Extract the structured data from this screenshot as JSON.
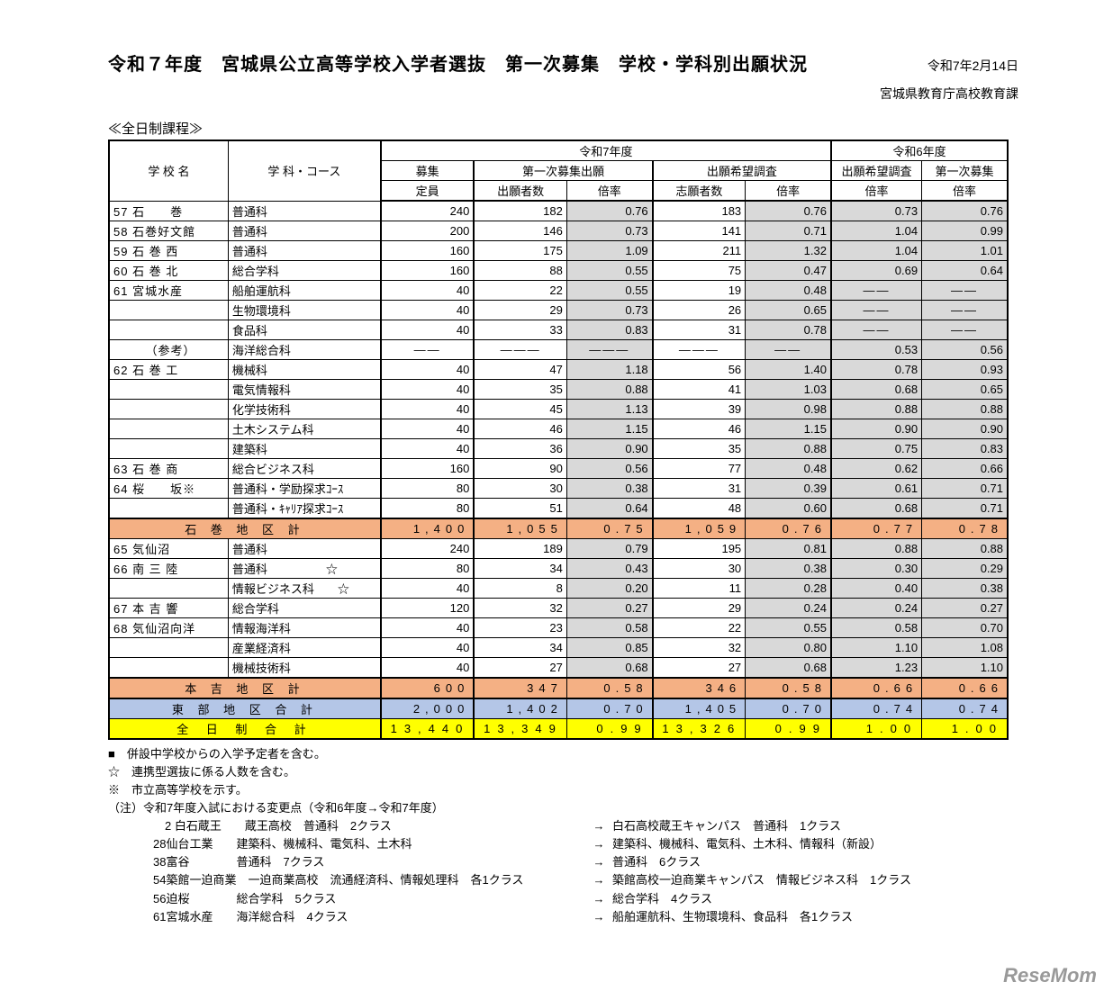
{
  "header": {
    "title": "令和７年度　宮城県公立高等学校入学者選抜　第一次募集　学校・学科別出願状況",
    "date": "令和7年2月14日",
    "department": "宮城県教育庁高校教育課",
    "program_label": "≪全日制課程≫"
  },
  "columns": {
    "school": "学 校 名",
    "dept": "学 科・コース",
    "r7_group": "令和7年度",
    "r6_group": "令和6年度",
    "capacity_top": "募集",
    "capacity_bot": "定員",
    "first_app_group": "第一次募集出願",
    "survey_group": "出願希望調査",
    "prev_survey_top": "出願希望調査",
    "prev_first_top": "第一次募集",
    "applicants": "出願者数",
    "rate": "倍率",
    "survey_n": "志願者数"
  },
  "rows": [
    {
      "no": "57",
      "school": "石　　巻",
      "dept": "普通科",
      "cap": "240",
      "app": "182",
      "r1": "0.76",
      "surv": "183",
      "r2": "0.76",
      "p1": "0.73",
      "p2": "0.76"
    },
    {
      "no": "58",
      "school": "石巻好文館",
      "dept": "普通科",
      "cap": "200",
      "app": "146",
      "r1": "0.73",
      "surv": "141",
      "r2": "0.71",
      "p1": "1.04",
      "p2": "0.99"
    },
    {
      "no": "59",
      "school": "石 巻 西",
      "dept": "普通科",
      "cap": "160",
      "app": "175",
      "r1": "1.09",
      "surv": "211",
      "r2": "1.32",
      "p1": "1.04",
      "p2": "1.01"
    },
    {
      "no": "60",
      "school": "石 巻 北",
      "dept": "総合学科",
      "cap": "160",
      "app": "88",
      "r1": "0.55",
      "surv": "75",
      "r2": "0.47",
      "p1": "0.69",
      "p2": "0.64"
    },
    {
      "no": "61",
      "school": "宮城水産",
      "dept": "船舶運航科",
      "cap": "40",
      "app": "22",
      "r1": "0.55",
      "surv": "19",
      "r2": "0.48",
      "p1": "——",
      "p2": "——",
      "p_dash": true
    },
    {
      "no": "",
      "school": "",
      "dept": "生物環境科",
      "cap": "40",
      "app": "29",
      "r1": "0.73",
      "surv": "26",
      "r2": "0.65",
      "p1": "——",
      "p2": "——",
      "p_dash": true
    },
    {
      "no": "",
      "school": "",
      "dept": "食品科",
      "cap": "40",
      "app": "33",
      "r1": "0.83",
      "surv": "31",
      "r2": "0.78",
      "p1": "——",
      "p2": "——",
      "p_dash": true
    },
    {
      "no": "",
      "school": "　　　（参考）",
      "dept": "海洋総合科",
      "cap": "——",
      "app": "———",
      "r1": "———",
      "surv": "———",
      "r2": "——",
      "p1": "0.53",
      "p2": "0.56",
      "cap_dash": true
    },
    {
      "no": "62",
      "school": "石 巻 工",
      "dept": "機械科",
      "cap": "40",
      "app": "47",
      "r1": "1.18",
      "surv": "56",
      "r2": "1.40",
      "p1": "0.78",
      "p2": "0.93"
    },
    {
      "no": "",
      "school": "",
      "dept": "電気情報科",
      "cap": "40",
      "app": "35",
      "r1": "0.88",
      "surv": "41",
      "r2": "1.03",
      "p1": "0.68",
      "p2": "0.65"
    },
    {
      "no": "",
      "school": "",
      "dept": "化学技術科",
      "cap": "40",
      "app": "45",
      "r1": "1.13",
      "surv": "39",
      "r2": "0.98",
      "p1": "0.88",
      "p2": "0.88"
    },
    {
      "no": "",
      "school": "",
      "dept": "土木システム科",
      "cap": "40",
      "app": "46",
      "r1": "1.15",
      "surv": "46",
      "r2": "1.15",
      "p1": "0.90",
      "p2": "0.90"
    },
    {
      "no": "",
      "school": "",
      "dept": "建築科",
      "cap": "40",
      "app": "36",
      "r1": "0.90",
      "surv": "35",
      "r2": "0.88",
      "p1": "0.75",
      "p2": "0.83"
    },
    {
      "no": "63",
      "school": "石 巻 商",
      "dept": "総合ビジネス科",
      "cap": "160",
      "app": "90",
      "r1": "0.56",
      "surv": "77",
      "r2": "0.48",
      "p1": "0.62",
      "p2": "0.66"
    },
    {
      "no": "64",
      "school": "桜　　坂※",
      "dept": "普通科・学励探求ｺｰｽ",
      "cap": "80",
      "app": "30",
      "r1": "0.38",
      "surv": "31",
      "r2": "0.39",
      "p1": "0.61",
      "p2": "0.71"
    },
    {
      "no": "",
      "school": "",
      "dept": "普通科・ｷｬﾘｱ探求ｺｰｽ",
      "cap": "80",
      "app": "51",
      "r1": "0.64",
      "surv": "48",
      "r2": "0.60",
      "p1": "0.68",
      "p2": "0.71"
    },
    {
      "type": "subtotal",
      "label": "石 巻 地 区 計",
      "cap": "1,400",
      "app": "1,055",
      "r1": "0.75",
      "surv": "1,059",
      "r2": "0.76",
      "p1": "0.77",
      "p2": "0.78"
    },
    {
      "no": "65",
      "school": "気仙沼",
      "dept": "普通科",
      "cap": "240",
      "app": "189",
      "r1": "0.79",
      "surv": "195",
      "r2": "0.81",
      "p1": "0.88",
      "p2": "0.88"
    },
    {
      "no": "66",
      "school": "南 三 陸",
      "dept": "普通科　　　　　☆",
      "cap": "80",
      "app": "34",
      "r1": "0.43",
      "surv": "30",
      "r2": "0.38",
      "p1": "0.30",
      "p2": "0.29"
    },
    {
      "no": "",
      "school": "",
      "dept": "情報ビジネス科　　☆",
      "cap": "40",
      "app": "8",
      "r1": "0.20",
      "surv": "11",
      "r2": "0.28",
      "p1": "0.40",
      "p2": "0.38"
    },
    {
      "no": "67",
      "school": "本 吉 響",
      "dept": "総合学科",
      "cap": "120",
      "app": "32",
      "r1": "0.27",
      "surv": "29",
      "r2": "0.24",
      "p1": "0.24",
      "p2": "0.27"
    },
    {
      "no": "68",
      "school": "気仙沼向洋",
      "dept": "情報海洋科",
      "cap": "40",
      "app": "23",
      "r1": "0.58",
      "surv": "22",
      "r2": "0.55",
      "p1": "0.58",
      "p2": "0.70"
    },
    {
      "no": "",
      "school": "",
      "dept": "産業経済科",
      "cap": "40",
      "app": "34",
      "r1": "0.85",
      "surv": "32",
      "r2": "0.80",
      "p1": "1.10",
      "p2": "1.08"
    },
    {
      "no": "",
      "school": "",
      "dept": "機械技術科",
      "cap": "40",
      "app": "27",
      "r1": "0.68",
      "surv": "27",
      "r2": "0.68",
      "p1": "1.23",
      "p2": "1.10"
    },
    {
      "type": "subtotal",
      "label": "本 吉 地 区 計",
      "cap": "600",
      "app": "347",
      "r1": "0.58",
      "surv": "346",
      "r2": "0.58",
      "p1": "0.66",
      "p2": "0.66"
    },
    {
      "type": "region",
      "label": "東 部 地 区 合 計",
      "cap": "2,000",
      "app": "1,402",
      "r1": "0.70",
      "surv": "1,405",
      "r2": "0.70",
      "p1": "0.74",
      "p2": "0.74"
    },
    {
      "type": "grand",
      "label": "全 日 制 合 計",
      "cap": "13,440",
      "app": "13,349",
      "r1": "0.99",
      "surv": "13,326",
      "r2": "0.99",
      "p1": "1.00",
      "p2": "1.00"
    }
  ],
  "footnotes": {
    "n1": "■　併設中学校からの入学予定者を含む。",
    "n2": "☆　連携型選抜に係る人数を含む。",
    "n3": "※　市立高等学校を示す。",
    "changes_title": "（注）令和7年度入試における変更点（令和6年度→令和7年度）",
    "changes": [
      {
        "l": "　2 白石蔵王　　蔵王高校　普通科　2クラス",
        "r": "白石高校蔵王キャンパス　普通科　1クラス"
      },
      {
        "l": "28仙台工業　　建築科、機械科、電気科、土木科",
        "r": "建築科、機械科、電気科、土木科、情報科（新設）"
      },
      {
        "l": "38富谷　　　　普通科　7クラス",
        "r": "普通科　6クラス"
      },
      {
        "l": "54築館一迫商業　一迫商業高校　流通経済科、情報処理科　各1クラス",
        "r": "築館高校一迫商業キャンパス　情報ビジネス科　1クラス"
      },
      {
        "l": "56迫桜　　　　総合学科　5クラス",
        "r": "総合学科　4クラス"
      },
      {
        "l": "61宮城水産　　海洋総合科　4クラス",
        "r": "船舶運航科、生物環境科、食品科　各1クラス"
      }
    ]
  },
  "watermark": "ReseMom"
}
